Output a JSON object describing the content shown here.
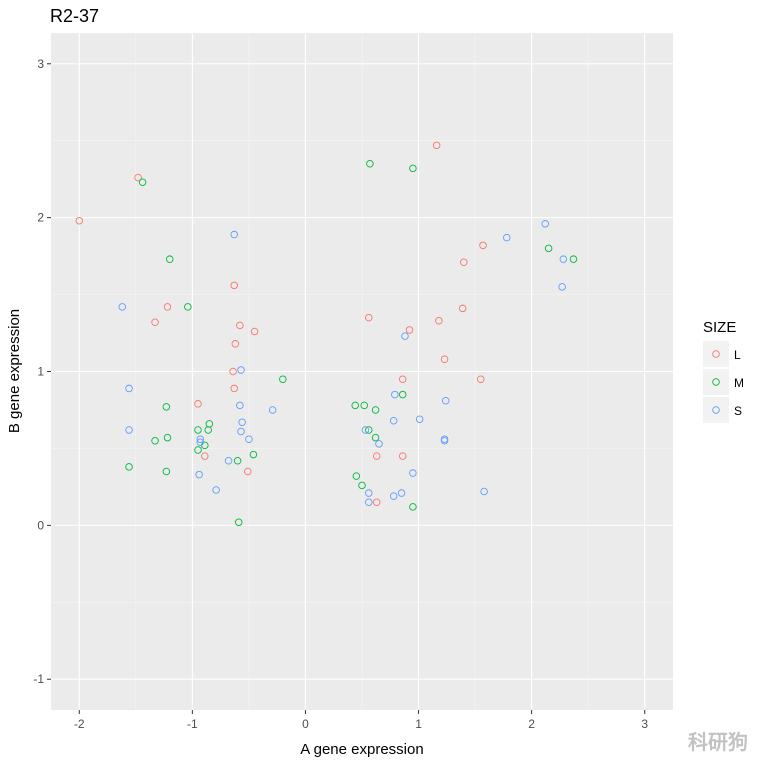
{
  "chart_data": {
    "type": "scatter",
    "title": "R2-37",
    "xlabel": "A gene expression",
    "ylabel": "B gene expression",
    "xlim": [
      -2.25,
      3.25
    ],
    "ylim": [
      -1.2,
      3.2
    ],
    "x_ticks": [
      -2,
      -1,
      0,
      1,
      2,
      3
    ],
    "x_tick_labels": [
      "-2",
      "-1",
      "0",
      "1",
      "2",
      "3"
    ],
    "y_ticks": [
      -1,
      0,
      1,
      2,
      3
    ],
    "y_tick_labels": [
      "-1",
      "0",
      "1",
      "2",
      "3"
    ],
    "grid": true,
    "legend": {
      "title": "SIZE",
      "placement": "right"
    },
    "series": [
      {
        "name": "L",
        "color": "#F8766D",
        "points": [
          [
            -2.0,
            1.98
          ],
          [
            -1.48,
            2.26
          ],
          [
            -1.22,
            1.42
          ],
          [
            -1.33,
            1.32
          ],
          [
            -0.95,
            0.79
          ],
          [
            -0.89,
            0.45
          ],
          [
            -0.63,
            1.56
          ],
          [
            -0.58,
            1.3
          ],
          [
            -0.62,
            1.18
          ],
          [
            -0.64,
            1.0
          ],
          [
            -0.63,
            0.89
          ],
          [
            -0.45,
            1.26
          ],
          [
            -0.51,
            0.35
          ],
          [
            1.16,
            2.47
          ],
          [
            1.4,
            1.71
          ],
          [
            1.57,
            1.82
          ],
          [
            1.39,
            1.41
          ],
          [
            1.18,
            1.33
          ],
          [
            0.56,
            1.35
          ],
          [
            0.92,
            1.27
          ],
          [
            1.23,
            1.08
          ],
          [
            0.86,
            0.95
          ],
          [
            1.55,
            0.95
          ],
          [
            0.63,
            0.45
          ],
          [
            0.86,
            0.45
          ],
          [
            0.63,
            0.15
          ]
        ]
      },
      {
        "name": "M",
        "color": "#00BA38",
        "points": [
          [
            -1.44,
            2.23
          ],
          [
            -1.2,
            1.73
          ],
          [
            -1.04,
            1.42
          ],
          [
            -1.23,
            0.77
          ],
          [
            -1.33,
            0.55
          ],
          [
            -1.22,
            0.57
          ],
          [
            -1.56,
            0.38
          ],
          [
            -1.23,
            0.35
          ],
          [
            -0.95,
            0.62
          ],
          [
            -0.85,
            0.66
          ],
          [
            -0.86,
            0.62
          ],
          [
            -0.89,
            0.52
          ],
          [
            -0.95,
            0.49
          ],
          [
            -0.6,
            0.42
          ],
          [
            -0.46,
            0.46
          ],
          [
            -0.59,
            0.02
          ],
          [
            -0.2,
            0.95
          ],
          [
            0.57,
            2.35
          ],
          [
            0.95,
            2.32
          ],
          [
            0.44,
            0.78
          ],
          [
            0.52,
            0.78
          ],
          [
            0.62,
            0.75
          ],
          [
            0.86,
            0.85
          ],
          [
            0.56,
            0.62
          ],
          [
            0.62,
            0.57
          ],
          [
            0.45,
            0.32
          ],
          [
            0.5,
            0.26
          ],
          [
            0.95,
            0.12
          ],
          [
            2.15,
            1.8
          ],
          [
            2.37,
            1.73
          ]
        ]
      },
      {
        "name": "S",
        "color": "#619CFF",
        "points": [
          [
            -1.62,
            1.42
          ],
          [
            -1.56,
            0.89
          ],
          [
            -1.56,
            0.62
          ],
          [
            -0.63,
            1.89
          ],
          [
            -0.57,
            1.01
          ],
          [
            -0.58,
            0.78
          ],
          [
            -0.56,
            0.67
          ],
          [
            -0.57,
            0.61
          ],
          [
            -0.5,
            0.56
          ],
          [
            -0.93,
            0.56
          ],
          [
            -0.93,
            0.54
          ],
          [
            -0.68,
            0.42
          ],
          [
            -0.94,
            0.33
          ],
          [
            -0.79,
            0.23
          ],
          [
            -0.29,
            0.75
          ],
          [
            0.53,
            0.62
          ],
          [
            0.65,
            0.53
          ],
          [
            0.79,
            0.85
          ],
          [
            0.88,
            1.23
          ],
          [
            1.01,
            0.69
          ],
          [
            0.78,
            0.68
          ],
          [
            1.24,
            0.81
          ],
          [
            1.23,
            0.56
          ],
          [
            1.23,
            0.55
          ],
          [
            0.95,
            0.34
          ],
          [
            0.85,
            0.21
          ],
          [
            0.78,
            0.19
          ],
          [
            0.56,
            0.21
          ],
          [
            0.56,
            0.15
          ],
          [
            1.58,
            0.22
          ],
          [
            1.78,
            1.87
          ],
          [
            2.12,
            1.96
          ],
          [
            2.28,
            1.73
          ],
          [
            2.27,
            1.55
          ]
        ]
      }
    ]
  },
  "watermark": "科研狗"
}
